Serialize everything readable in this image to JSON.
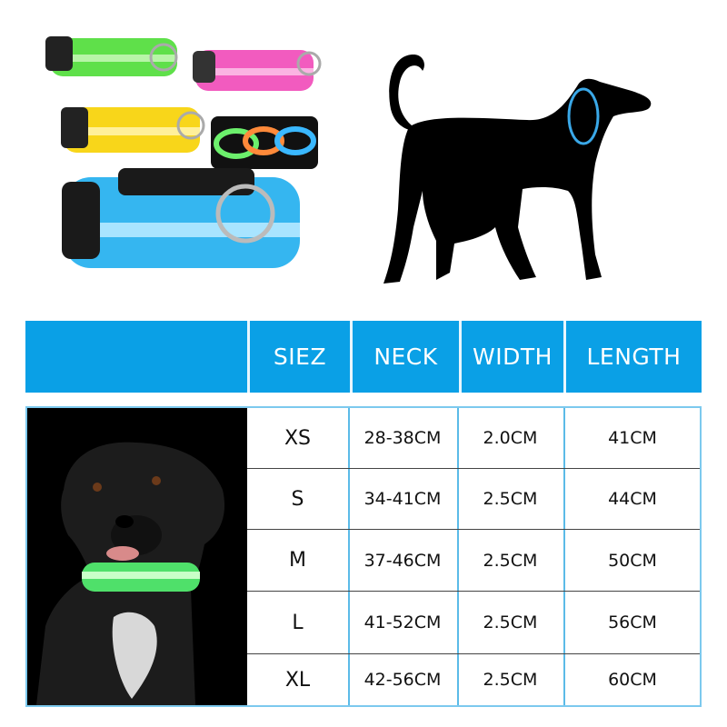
{
  "colors": {
    "header_blue": "#0aa0e6",
    "table_border": "#7cc9ee"
  },
  "table": {
    "headers": [
      "SIEZ",
      "NECK",
      "WIDTH",
      "LENGTH"
    ],
    "rows": [
      [
        "XS",
        "28-38CM",
        "2.0CM",
        "41CM"
      ],
      [
        "S",
        "34-41CM",
        "2.5CM",
        "44CM"
      ],
      [
        "M",
        "37-46CM",
        "2.5CM",
        "50CM"
      ],
      [
        "L",
        "41-52CM",
        "2.5CM",
        "56CM"
      ],
      [
        "XL",
        "42-56CM",
        "2.5CM",
        "60CM"
      ]
    ]
  },
  "images": {
    "collars": "colored-led-collars-photo",
    "silhouette": "dog-silhouette-with-collar",
    "dog_photo": "black-dog-wearing-green-led-collar"
  }
}
